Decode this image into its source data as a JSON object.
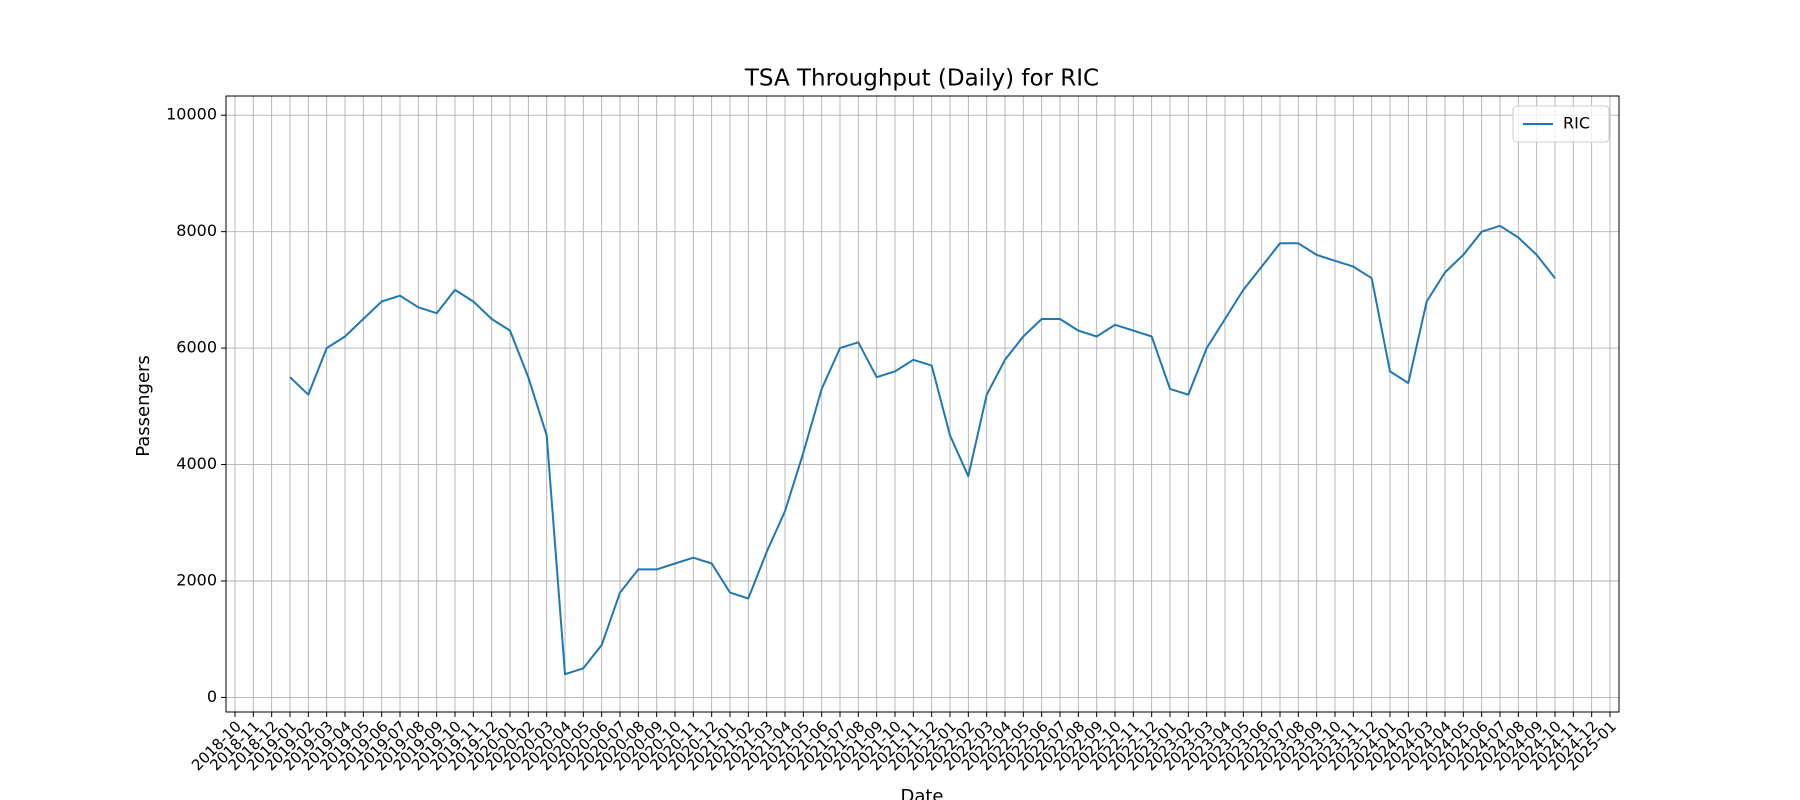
{
  "chart_data": {
    "type": "line",
    "title": "TSA Throughput (Daily) for RIC",
    "xlabel": "Date",
    "ylabel": "Passengers",
    "x": [
      "2019-01",
      "2019-02",
      "2019-03",
      "2019-04",
      "2019-05",
      "2019-06",
      "2019-07",
      "2019-08",
      "2019-09",
      "2019-10",
      "2019-11",
      "2019-12",
      "2020-01",
      "2020-02",
      "2020-03",
      "2020-04",
      "2020-05",
      "2020-06",
      "2020-07",
      "2020-08",
      "2020-09",
      "2020-10",
      "2020-11",
      "2020-12",
      "2021-01",
      "2021-02",
      "2021-03",
      "2021-04",
      "2021-05",
      "2021-06",
      "2021-07",
      "2021-08",
      "2021-09",
      "2021-10",
      "2021-11",
      "2021-12",
      "2022-01",
      "2022-02",
      "2022-03",
      "2022-04",
      "2022-05",
      "2022-06",
      "2022-07",
      "2022-08",
      "2022-09",
      "2022-10",
      "2022-11",
      "2022-12",
      "2023-01",
      "2023-02",
      "2023-03",
      "2023-04",
      "2023-05",
      "2023-06",
      "2023-07",
      "2023-08",
      "2023-09",
      "2023-10",
      "2023-11",
      "2023-12",
      "2024-01",
      "2024-02",
      "2024-03",
      "2024-04",
      "2024-05",
      "2024-06",
      "2024-07",
      "2024-08",
      "2024-09",
      "2024-10"
    ],
    "series": [
      {
        "name": "RIC",
        "color": "#1f77b4",
        "values": [
          5500,
          5200,
          6000,
          6200,
          6500,
          6800,
          6900,
          6700,
          6600,
          7000,
          6800,
          6500,
          6300,
          5500,
          4500,
          400,
          500,
          900,
          1800,
          2200,
          2200,
          2300,
          2400,
          2300,
          1800,
          1700,
          2500,
          3200,
          4200,
          5300,
          6000,
          6100,
          5500,
          5600,
          5800,
          5700,
          4500,
          3800,
          5200,
          5800,
          6200,
          6500,
          6500,
          6300,
          6200,
          6400,
          6300,
          6200,
          5300,
          5200,
          6000,
          6500,
          7000,
          7400,
          7800,
          7800,
          7600,
          7500,
          7400,
          7200,
          5600,
          5400,
          6800,
          7300,
          7600,
          8000,
          8100,
          7900,
          7600,
          7200
        ]
      }
    ],
    "xlim": [
      "2018-10",
      "2025-01"
    ],
    "xticks": [
      "2018-10",
      "2018-11",
      "2018-12",
      "2019-01",
      "2019-02",
      "2019-03",
      "2019-04",
      "2019-05",
      "2019-06",
      "2019-07",
      "2019-08",
      "2019-09",
      "2019-10",
      "2019-11",
      "2019-12",
      "2020-01",
      "2020-02",
      "2020-03",
      "2020-04",
      "2020-05",
      "2020-06",
      "2020-07",
      "2020-08",
      "2020-09",
      "2020-10",
      "2020-11",
      "2020-12",
      "2021-01",
      "2021-02",
      "2021-03",
      "2021-04",
      "2021-05",
      "2021-06",
      "2021-07",
      "2021-08",
      "2021-09",
      "2021-10",
      "2021-11",
      "2021-12",
      "2022-01",
      "2022-02",
      "2022-03",
      "2022-04",
      "2022-05",
      "2022-06",
      "2022-07",
      "2022-08",
      "2022-09",
      "2022-10",
      "2022-11",
      "2022-12",
      "2023-01",
      "2023-02",
      "2023-03",
      "2023-04",
      "2023-05",
      "2023-06",
      "2023-07",
      "2023-08",
      "2023-09",
      "2023-10",
      "2023-11",
      "2023-12",
      "2024-01",
      "2024-02",
      "2024-03",
      "2024-04",
      "2024-05",
      "2024-06",
      "2024-07",
      "2024-08",
      "2024-09",
      "2024-10",
      "2024-11",
      "2024-12",
      "2025-01"
    ],
    "ylim": [
      -250,
      10330
    ],
    "yticks": [
      0,
      2000,
      4000,
      6000,
      8000,
      10000
    ],
    "grid": true,
    "legend": "upper right"
  }
}
